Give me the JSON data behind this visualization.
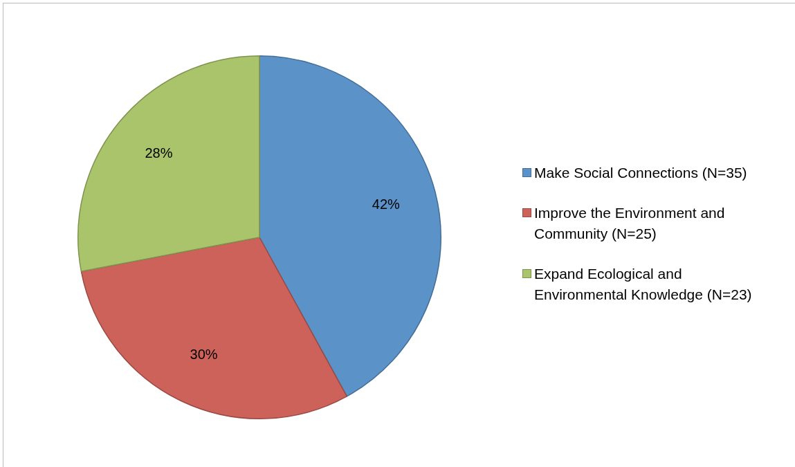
{
  "chart_data": {
    "type": "pie",
    "categories": [
      "Make Social Connections (N=35)",
      "Improve the Environment and Community (N=25)",
      "Expand Ecological and Environmental Knowledge (N=23)"
    ],
    "values": [
      42,
      30,
      28
    ],
    "colors": [
      "#5b93c8",
      "#cc625a",
      "#a9c46a"
    ],
    "value_labels": [
      "42%",
      "30%",
      "28%"
    ],
    "legend": "right"
  }
}
